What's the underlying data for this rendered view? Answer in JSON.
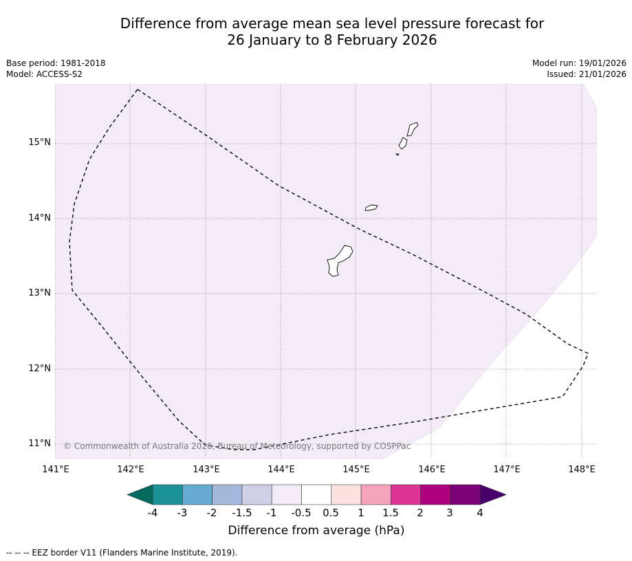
{
  "title": {
    "line1": "Difference from average mean sea level pressure forecast for",
    "line2": "26 January to 8 February 2026"
  },
  "meta": {
    "base_period": "Base period: 1981-2018",
    "model": "Model: ACCESS-S2",
    "model_run": "Model run: 19/01/2026",
    "issued": "Issued: 21/01/2026"
  },
  "axes": {
    "lat_labels": [
      "15°N",
      "14°N",
      "13°N",
      "12°N",
      "11°N"
    ],
    "lon_labels": [
      "141°E",
      "142°E",
      "143°E",
      "144°E",
      "145°E",
      "146°E",
      "147°E",
      "148°E"
    ]
  },
  "copyright": "© Commonwealth of Australia 2026, Bureau of Meteorology, supported by COSPPac",
  "colorbar": {
    "title": "Difference from average (hPa)",
    "ticks": [
      "-4",
      "-3",
      "-2",
      "-1.5",
      "-1",
      "-0.5",
      "0.5",
      "1",
      "1.5",
      "2",
      "3",
      "4"
    ],
    "colors": [
      "#006a5e",
      "#1a9297",
      "#67aad4",
      "#a5b9dc",
      "#cfcfe7",
      "#f3ecf6",
      "#ffffff",
      "#fde0e0",
      "#f8a3bd",
      "#dd3497",
      "#ae017e",
      "#7a0177",
      "#49006a"
    ]
  },
  "footnote": "--  --  -- EEZ border V11 (Flanders Marine Institute, 2019).",
  "colors": {
    "anomaly_fill": "#f3ecf6",
    "grid": "#777777",
    "eez_border": "#000000"
  }
}
